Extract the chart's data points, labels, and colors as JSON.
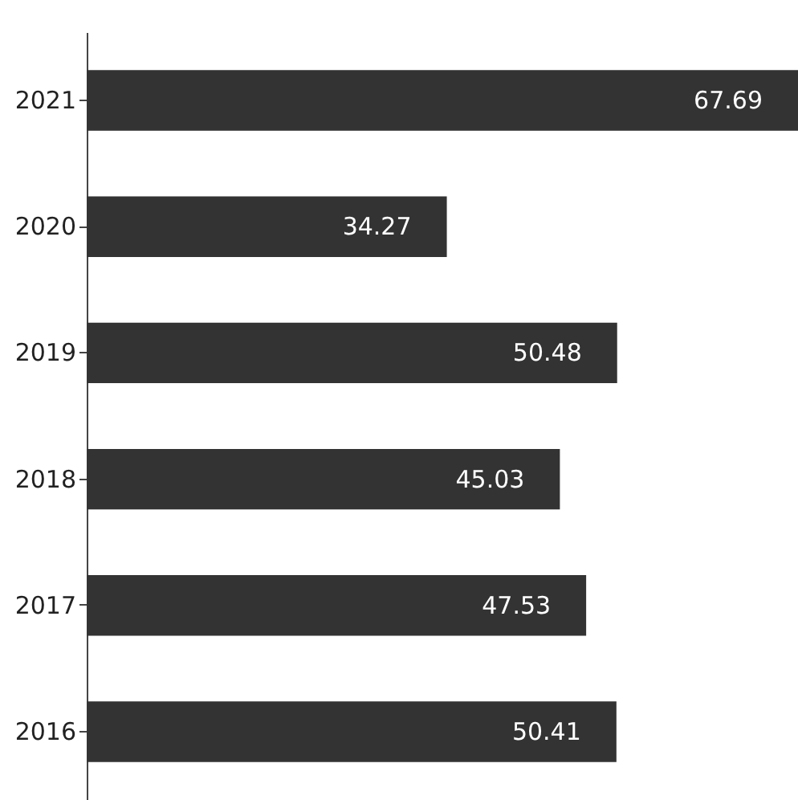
{
  "chart_data": {
    "type": "bar",
    "orientation": "horizontal",
    "categories": [
      "2021",
      "2020",
      "2019",
      "2018",
      "2017",
      "2016"
    ],
    "values": [
      67.69,
      34.27,
      50.48,
      45.03,
      47.53,
      50.41
    ],
    "color": "#333333",
    "data_labels": true
  }
}
